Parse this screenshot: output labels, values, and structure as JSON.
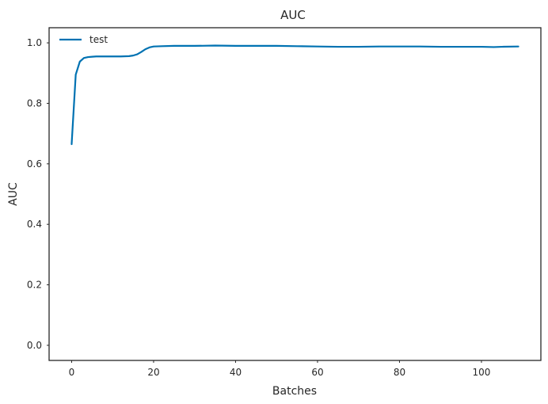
{
  "chart_data": {
    "type": "line",
    "title": "AUC",
    "xlabel": "Batches",
    "ylabel": "AUC",
    "xlim": [
      -5.5,
      114.5
    ],
    "ylim": [
      -0.05,
      1.05
    ],
    "xticks": [
      0,
      20,
      40,
      60,
      80,
      100
    ],
    "yticks": [
      0.0,
      0.2,
      0.4,
      0.6,
      0.8,
      1.0
    ],
    "xtick_labels": [
      "0",
      "20",
      "40",
      "60",
      "80",
      "100"
    ],
    "ytick_labels": [
      "0.0",
      "0.2",
      "0.4",
      "0.6",
      "0.8",
      "1.0"
    ],
    "grid": false,
    "legend_position": "upper-left",
    "series": [
      {
        "name": "test",
        "color": "#0072b2",
        "x": [
          0,
          1,
          2,
          3,
          4,
          5,
          6,
          8,
          10,
          12,
          14,
          15,
          16,
          17,
          18,
          19,
          20,
          22,
          25,
          30,
          35,
          40,
          45,
          50,
          55,
          60,
          65,
          70,
          75,
          80,
          85,
          90,
          95,
          100,
          103,
          105,
          109
        ],
        "values": [
          0.665,
          0.895,
          0.938,
          0.95,
          0.953,
          0.954,
          0.955,
          0.955,
          0.955,
          0.955,
          0.956,
          0.958,
          0.962,
          0.97,
          0.979,
          0.985,
          0.988,
          0.989,
          0.99,
          0.99,
          0.991,
          0.99,
          0.99,
          0.99,
          0.989,
          0.988,
          0.987,
          0.987,
          0.988,
          0.988,
          0.988,
          0.987,
          0.987,
          0.987,
          0.986,
          0.987,
          0.988
        ]
      }
    ]
  }
}
